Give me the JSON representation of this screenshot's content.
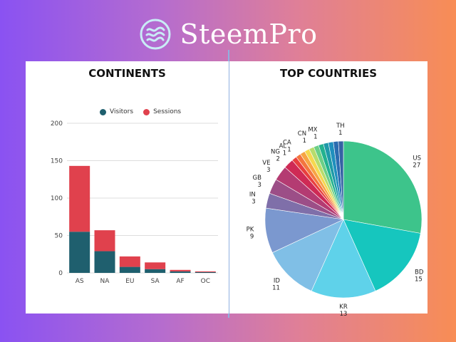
{
  "brand": {
    "name": "SteemPro"
  },
  "chart_data": [
    {
      "type": "bar",
      "title": "CONTINENTS",
      "categories": [
        "AS",
        "NA",
        "EU",
        "SA",
        "AF",
        "OC"
      ],
      "series": [
        {
          "name": "Visitors",
          "color": "#1f5f6e",
          "values": [
            55,
            29,
            8,
            5,
            2,
            1
          ]
        },
        {
          "name": "Sessions",
          "color": "#e0414d",
          "values": [
            88,
            28,
            14,
            9,
            2,
            1
          ]
        }
      ],
      "stacked": true,
      "yticks": [
        0,
        50,
        100,
        150,
        200
      ],
      "ylim": [
        0,
        200
      ],
      "grid": true,
      "legend": "top"
    },
    {
      "type": "pie",
      "title": "TOP COUNTRIES",
      "slices": [
        {
          "label": "US",
          "value": 27,
          "color": "#3dc48b"
        },
        {
          "label": "BD",
          "value": 15,
          "color": "#16c6be"
        },
        {
          "label": "KR",
          "value": 13,
          "color": "#5fd2ea"
        },
        {
          "label": "ID",
          "value": 11,
          "color": "#80bfe6"
        },
        {
          "label": "PK",
          "value": 9,
          "color": "#7b98cf"
        },
        {
          "label": "IN",
          "value": 3,
          "color": "#7f6fa9"
        },
        {
          "label": "GB",
          "value": 3,
          "color": "#9c4e87"
        },
        {
          "label": "VE",
          "value": 3,
          "color": "#b43b72"
        },
        {
          "label": "NG",
          "value": 2,
          "color": "#cf2a55"
        },
        {
          "label": "AL",
          "value": 1,
          "color": "#e83f3f"
        },
        {
          "label": "CA",
          "value": 1,
          "color": "#f3753e"
        },
        {
          "label": "",
          "value": 1,
          "color": "#f7a443"
        },
        {
          "label": "",
          "value": 1,
          "color": "#f5d84f"
        },
        {
          "label": "CN",
          "value": 1,
          "color": "#b7dc6c"
        },
        {
          "label": "",
          "value": 1,
          "color": "#6ccf86"
        },
        {
          "label": "MX",
          "value": 1,
          "color": "#23b28f"
        },
        {
          "label": "",
          "value": 1,
          "color": "#1e9aa8"
        },
        {
          "label": "",
          "value": 1,
          "color": "#1f8fbd"
        },
        {
          "label": "",
          "value": 1,
          "color": "#2a6cb0"
        },
        {
          "label": "TH",
          "value": 1,
          "color": "#3562a4"
        }
      ]
    }
  ]
}
